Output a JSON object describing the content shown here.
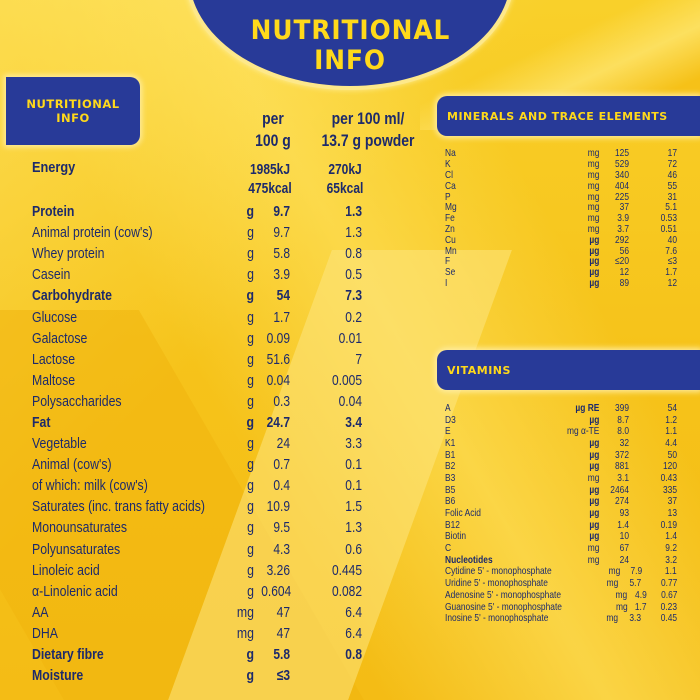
{
  "title": {
    "line1": "NUTRITIONAL",
    "line2": "INFO"
  },
  "left_panel": {
    "banner": {
      "line1": "NUTRITIONAL",
      "line2": "INFO"
    },
    "columns": {
      "col1": {
        "line1": "per",
        "line2": "100 g"
      },
      "col2": {
        "line1": "per 100 ml/",
        "line2": "13.7 g powder"
      }
    },
    "energy": {
      "label": "Energy",
      "per100g_kj": "1985kJ",
      "per100g_kcal": "475kcal",
      "per100ml_kj": "270kJ",
      "per100ml_kcal": "65kcal"
    },
    "rows": [
      {
        "name": "Protein",
        "unit": "g",
        "v1": "9.7",
        "v2": "1.3",
        "bold": true
      },
      {
        "name": "Animal protein (cow's)",
        "unit": "g",
        "v1": "9.7",
        "v2": "1.3",
        "bold": false
      },
      {
        "name": "Whey protein",
        "unit": "g",
        "v1": "5.8",
        "v2": "0.8",
        "bold": false
      },
      {
        "name": "Casein",
        "unit": "g",
        "v1": "3.9",
        "v2": "0.5",
        "bold": false
      },
      {
        "name": "Carbohydrate",
        "unit": "g",
        "v1": "54",
        "v2": "7.3",
        "bold": true
      },
      {
        "name": "Glucose",
        "unit": "g",
        "v1": "1.7",
        "v2": "0.2",
        "bold": false
      },
      {
        "name": "Galactose",
        "unit": "g",
        "v1": "0.09",
        "v2": "0.01",
        "bold": false
      },
      {
        "name": "Lactose",
        "unit": "g",
        "v1": "51.6",
        "v2": "7",
        "bold": false
      },
      {
        "name": "Maltose",
        "unit": "g",
        "v1": "0.04",
        "v2": "0.005",
        "bold": false
      },
      {
        "name": "Polysaccharides",
        "unit": "g",
        "v1": "0.3",
        "v2": "0.04",
        "bold": false
      },
      {
        "name": "Fat",
        "unit": "g",
        "v1": "24.7",
        "v2": "3.4",
        "bold": true
      },
      {
        "name": "Vegetable",
        "unit": "g",
        "v1": "24",
        "v2": "3.3",
        "bold": false
      },
      {
        "name": "Animal (cow's)",
        "unit": "g",
        "v1": "0.7",
        "v2": "0.1",
        "bold": false
      },
      {
        "name": "of which: milk (cow's)",
        "unit": "g",
        "v1": "0.4",
        "v2": "0.1",
        "bold": false
      },
      {
        "name": "Saturates (inc. trans fatty acids)",
        "unit": "g",
        "v1": "10.9",
        "v2": "1.5",
        "bold": false
      },
      {
        "name": "Monounsaturates",
        "unit": "g",
        "v1": "9.5",
        "v2": "1.3",
        "bold": false
      },
      {
        "name": "Polyunsaturates",
        "unit": "g",
        "v1": "4.3",
        "v2": "0.6",
        "bold": false
      },
      {
        "name": "Linoleic acid",
        "unit": "g",
        "v1": "3.26",
        "v2": "0.445",
        "bold": false
      },
      {
        "name": "α-Linolenic acid",
        "unit": "g",
        "v1": "0.604",
        "v2": "0.082",
        "bold": false
      },
      {
        "name": "AA",
        "unit": "mg",
        "v1": "47",
        "v2": "6.4",
        "bold": false
      },
      {
        "name": "DHA",
        "unit": "mg",
        "v1": "47",
        "v2": "6.4",
        "bold": false
      },
      {
        "name": "Dietary fibre",
        "unit": "g",
        "v1": "5.8",
        "v2": "0.8",
        "bold": true
      },
      {
        "name": "Moisture",
        "unit": "g",
        "v1": "≤3",
        "v2": "",
        "bold": true
      }
    ]
  },
  "minerals": {
    "banner": "MINERALS AND TRACE ELEMENTS",
    "rows": [
      {
        "name": "Na",
        "unit": "mg",
        "v1": "125",
        "v2": "17"
      },
      {
        "name": "K",
        "unit": "mg",
        "v1": "529",
        "v2": "72"
      },
      {
        "name": "Cl",
        "unit": "mg",
        "v1": "340",
        "v2": "46"
      },
      {
        "name": "Ca",
        "unit": "mg",
        "v1": "404",
        "v2": "55"
      },
      {
        "name": "P",
        "unit": "mg",
        "v1": "225",
        "v2": "31"
      },
      {
        "name": "Mg",
        "unit": "mg",
        "v1": "37",
        "v2": "5.1"
      },
      {
        "name": "Fe",
        "unit": "mg",
        "v1": "3.9",
        "v2": "0.53"
      },
      {
        "name": "Zn",
        "unit": "mg",
        "v1": "3.7",
        "v2": "0.51"
      },
      {
        "name": "Cu",
        "unit": "µg",
        "v1": "292",
        "v2": "40"
      },
      {
        "name": "Mn",
        "unit": "µg",
        "v1": "56",
        "v2": "7.6"
      },
      {
        "name": "F",
        "unit": "µg",
        "v1": "≤20",
        "v2": "≤3"
      },
      {
        "name": "Se",
        "unit": "µg",
        "v1": "12",
        "v2": "1.7"
      },
      {
        "name": "I",
        "unit": "µg",
        "v1": "89",
        "v2": "12"
      }
    ]
  },
  "vitamins": {
    "banner": "VITAMINS",
    "rows": [
      {
        "name": "A",
        "unit": "µg RE",
        "v1": "399",
        "v2": "54",
        "bold": false
      },
      {
        "name": "D3",
        "unit": "µg",
        "v1": "8.7",
        "v2": "1.2",
        "bold": false
      },
      {
        "name": "E",
        "unit": "mg α-TE",
        "v1": "8.0",
        "v2": "1.1",
        "bold": false
      },
      {
        "name": "K1",
        "unit": "µg",
        "v1": "32",
        "v2": "4.4",
        "bold": false
      },
      {
        "name": "B1",
        "unit": "µg",
        "v1": "372",
        "v2": "50",
        "bold": false
      },
      {
        "name": "B2",
        "unit": "µg",
        "v1": "881",
        "v2": "120",
        "bold": false
      },
      {
        "name": "B3",
        "unit": "mg",
        "v1": "3.1",
        "v2": "0.43",
        "bold": false
      },
      {
        "name": "B5",
        "unit": "µg",
        "v1": "2464",
        "v2": "335",
        "bold": false
      },
      {
        "name": "B6",
        "unit": "µg",
        "v1": "274",
        "v2": "37",
        "bold": false
      },
      {
        "name": "Folic Acid",
        "unit": "µg",
        "v1": "93",
        "v2": "13",
        "bold": false
      },
      {
        "name": "B12",
        "unit": "µg",
        "v1": "1.4",
        "v2": "0.19",
        "bold": false
      },
      {
        "name": "Biotin",
        "unit": "µg",
        "v1": "10",
        "v2": "1.4",
        "bold": false
      },
      {
        "name": "C",
        "unit": "mg",
        "v1": "67",
        "v2": "9.2",
        "bold": false
      },
      {
        "name": "Nucleotides",
        "unit": "mg",
        "v1": "24",
        "v2": "3.2",
        "bold": true
      },
      {
        "name": "Cytidine 5' - monophosphate",
        "unit": "mg",
        "v1": "7.9",
        "v2": "1.1",
        "bold": false
      },
      {
        "name": "Uridine 5' - monophosphate",
        "unit": "mg",
        "v1": "5.7",
        "v2": "0.77",
        "bold": false
      },
      {
        "name": "Adenosine 5' - monophosphate",
        "unit": "mg",
        "v1": "4.9",
        "v2": "0.67",
        "bold": false
      },
      {
        "name": "Guanosine 5' - monophosphate",
        "unit": "mg",
        "v1": "1.7",
        "v2": "0.23",
        "bold": false
      },
      {
        "name": "Inosine 5' - monophosphate",
        "unit": "mg",
        "v1": "3.3",
        "v2": "0.45",
        "bold": false
      }
    ]
  },
  "colors": {
    "background": "#f7c51a",
    "banner": "#283a98",
    "banner_text": "#ffd91a",
    "text": "#1d2a6b"
  }
}
